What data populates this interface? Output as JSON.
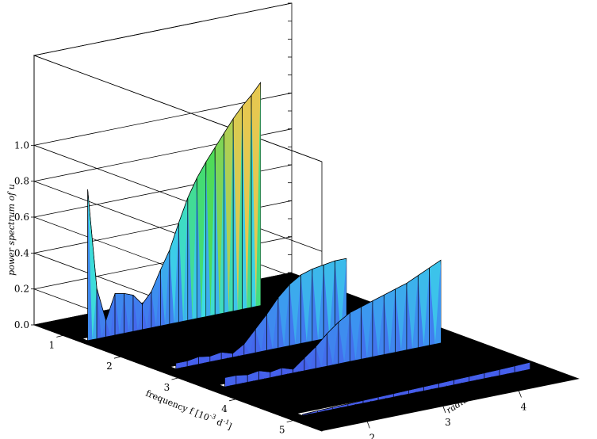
{
  "chart_data": {
    "type": "3d-ribbon",
    "zlabel": "power spectrum of u",
    "xlabel": "frequency f [10",
    "xlabel_exp": "-3",
    "xlabel_unit": " d",
    "xlabel_unit_exp": "-1",
    "xlabel_close": "]",
    "ylabel": "radius r/R",
    "ylabel_sub": "*",
    "z_ticks": [
      "0.0",
      "0.2",
      "0.4",
      "0.6",
      "0.8",
      "1.0"
    ],
    "x_ticks": [
      "1",
      "2",
      "3",
      "4",
      "5"
    ],
    "y_ticks": [
      "2",
      "3",
      "4"
    ],
    "zlim": [
      0,
      1.5
    ],
    "xlim": [
      0.5,
      5.5
    ],
    "ylim": [
      1.4,
      4.8
    ],
    "grid": true,
    "series": [
      {
        "frequency": 1.3,
        "r": [
          1.5,
          1.62,
          1.74,
          1.86,
          1.98,
          2.1,
          2.22,
          2.34,
          2.46,
          2.58,
          2.7,
          2.82,
          2.94,
          3.06,
          3.18,
          3.3,
          3.42,
          3.54,
          3.66,
          3.78
        ],
        "values": [
          0.84,
          0.28,
          0.09,
          0.23,
          0.22,
          0.2,
          0.14,
          0.2,
          0.31,
          0.41,
          0.55,
          0.68,
          0.78,
          0.86,
          0.93,
          1.0,
          1.07,
          1.13,
          1.18,
          1.24
        ]
      },
      {
        "frequency": 2.7,
        "r": [
          1.6,
          1.75,
          1.9,
          2.05,
          2.2,
          2.35,
          2.5,
          2.65,
          2.8,
          2.95,
          3.1,
          3.25,
          3.4,
          3.55,
          3.7,
          3.85
        ],
        "values": [
          0.03,
          0.03,
          0.04,
          0.03,
          0.04,
          0.02,
          0.06,
          0.13,
          0.2,
          0.28,
          0.34,
          0.38,
          0.4,
          0.41,
          0.42,
          0.42
        ]
      },
      {
        "frequency": 3.55,
        "r": [
          1.6,
          1.75,
          1.9,
          2.05,
          2.2,
          2.35,
          2.5,
          2.65,
          2.8,
          2.95,
          3.1,
          3.25,
          3.4,
          3.55,
          3.7,
          3.85,
          4.0,
          4.15,
          4.3,
          4.45
        ],
        "values": [
          0.05,
          0.05,
          0.04,
          0.05,
          0.03,
          0.04,
          0.02,
          0.07,
          0.12,
          0.18,
          0.23,
          0.27,
          0.29,
          0.31,
          0.33,
          0.35,
          0.37,
          0.4,
          0.43,
          0.46
        ]
      },
      {
        "frequency": 4.9,
        "r": [
          1.6,
          1.8,
          2.0,
          2.2,
          2.4,
          2.6,
          2.8,
          3.0,
          3.2,
          3.4,
          3.6,
          3.8,
          4.0,
          4.2,
          4.4,
          4.6
        ],
        "values": [
          0.005,
          0.008,
          0.01,
          0.012,
          0.014,
          0.016,
          0.018,
          0.02,
          0.022,
          0.024,
          0.026,
          0.028,
          0.03,
          0.032,
          0.035,
          0.038
        ]
      }
    ]
  }
}
